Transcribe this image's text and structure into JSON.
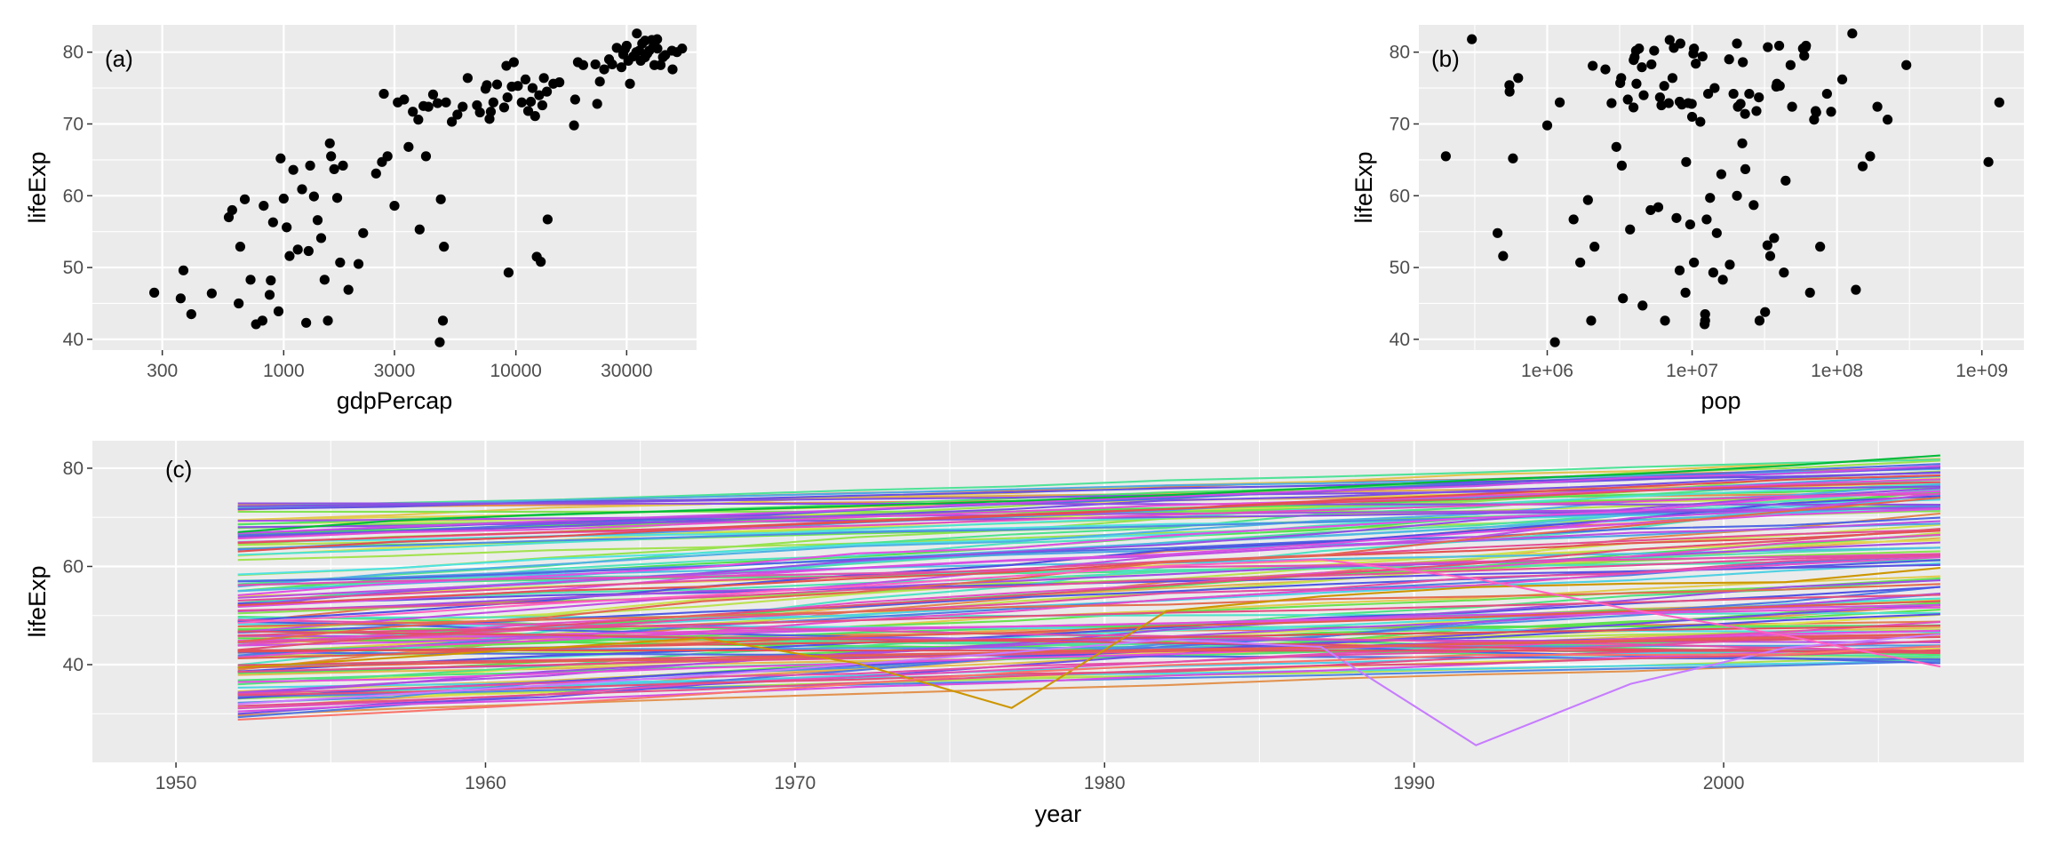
{
  "chart_data": [
    {
      "panel": "a",
      "type": "scatter",
      "tag": "(a)",
      "xlabel": "gdpPercap",
      "ylabel": "lifeExp",
      "xscale": "log10",
      "xlim": [
        150,
        60000
      ],
      "ylim": [
        38.5,
        83.8
      ],
      "xticks": [
        300,
        1000,
        3000,
        10000,
        30000
      ],
      "xtick_labels": [
        "300",
        "1000",
        "3000",
        "10000",
        "30000"
      ],
      "xminor": [
        100,
        10000,
        100000
      ],
      "yticks": [
        40,
        50,
        60,
        70,
        80
      ],
      "ytick_labels": [
        "40",
        "50",
        "60",
        "70",
        "80"
      ],
      "grid": true,
      "point_color": "#000000",
      "points": [
        [
          277,
          46.5
        ],
        [
          360,
          45.7
        ],
        [
          370,
          49.6
        ],
        [
          400,
          43.5
        ],
        [
          490,
          46.4
        ],
        [
          580,
          57.0
        ],
        [
          600,
          58.0
        ],
        [
          640,
          45.0
        ],
        [
          650,
          52.9
        ],
        [
          680,
          59.5
        ],
        [
          720,
          48.3
        ],
        [
          760,
          42.1
        ],
        [
          810,
          42.6
        ],
        [
          820,
          58.6
        ],
        [
          870,
          46.2
        ],
        [
          880,
          48.2
        ],
        [
          900,
          56.3
        ],
        [
          950,
          43.9
        ],
        [
          970,
          65.2
        ],
        [
          1000,
          59.6
        ],
        [
          1030,
          55.6
        ],
        [
          1060,
          51.6
        ],
        [
          1100,
          63.6
        ],
        [
          1150,
          52.5
        ],
        [
          1200,
          60.9
        ],
        [
          1250,
          42.3
        ],
        [
          1280,
          52.3
        ],
        [
          1300,
          64.2
        ],
        [
          1350,
          59.9
        ],
        [
          1400,
          56.6
        ],
        [
          1450,
          54.1
        ],
        [
          1500,
          48.3
        ],
        [
          1550,
          42.6
        ],
        [
          1580,
          67.3
        ],
        [
          1600,
          65.5
        ],
        [
          1650,
          63.7
        ],
        [
          1700,
          59.7
        ],
        [
          1800,
          64.2
        ],
        [
          1750,
          50.7
        ],
        [
          1900,
          46.9
        ],
        [
          2100,
          50.5
        ],
        [
          2200,
          54.8
        ],
        [
          2500,
          63.1
        ],
        [
          2650,
          64.7
        ],
        [
          2700,
          74.2
        ],
        [
          2800,
          65.5
        ],
        [
          3000,
          58.6
        ],
        [
          3100,
          73.0
        ],
        [
          3300,
          73.4
        ],
        [
          3450,
          66.8
        ],
        [
          3600,
          71.7
        ],
        [
          3800,
          70.6
        ],
        [
          3850,
          55.3
        ],
        [
          4000,
          72.5
        ],
        [
          4100,
          65.5
        ],
        [
          4200,
          72.4
        ],
        [
          4400,
          74.1
        ],
        [
          4600,
          72.9
        ],
        [
          4700,
          39.6
        ],
        [
          4750,
          59.5
        ],
        [
          4850,
          42.6
        ],
        [
          4900,
          52.9
        ],
        [
          5000,
          73.0
        ],
        [
          5300,
          70.3
        ],
        [
          5600,
          71.3
        ],
        [
          5900,
          72.4
        ],
        [
          6200,
          76.4
        ],
        [
          6800,
          72.6
        ],
        [
          7000,
          71.6
        ],
        [
          7400,
          74.9
        ],
        [
          7500,
          75.4
        ],
        [
          7700,
          70.7
        ],
        [
          7800,
          71.7
        ],
        [
          8000,
          73.0
        ],
        [
          8300,
          75.5
        ],
        [
          8900,
          72.3
        ],
        [
          9100,
          78.1
        ],
        [
          9200,
          73.7
        ],
        [
          9300,
          49.3
        ],
        [
          9600,
          75.2
        ],
        [
          9800,
          78.6
        ],
        [
          10200,
          75.3
        ],
        [
          10600,
          73.0
        ],
        [
          11000,
          76.2
        ],
        [
          11300,
          71.8
        ],
        [
          11600,
          73.1
        ],
        [
          11800,
          75.0
        ],
        [
          12100,
          71.1
        ],
        [
          12300,
          51.5
        ],
        [
          12600,
          74.0
        ],
        [
          12800,
          50.8
        ],
        [
          13000,
          72.6
        ],
        [
          13200,
          76.4
        ],
        [
          13600,
          74.5
        ],
        [
          13700,
          56.7
        ],
        [
          14500,
          75.6
        ],
        [
          15400,
          75.8
        ],
        [
          17800,
          69.8
        ],
        [
          18000,
          73.4
        ],
        [
          18500,
          78.6
        ],
        [
          19500,
          78.2
        ],
        [
          22000,
          78.3
        ],
        [
          22400,
          72.8
        ],
        [
          23000,
          75.9
        ],
        [
          24000,
          77.6
        ],
        [
          25200,
          79.0
        ],
        [
          26000,
          78.3
        ],
        [
          27200,
          80.6
        ],
        [
          28500,
          77.9
        ],
        [
          29000,
          79.7
        ],
        [
          30000,
          80.9
        ],
        [
          30500,
          78.8
        ],
        [
          31000,
          75.6
        ],
        [
          32000,
          79.4
        ],
        [
          33000,
          80.0
        ],
        [
          33200,
          82.6
        ],
        [
          34000,
          80.2
        ],
        [
          34500,
          78.8
        ],
        [
          35000,
          81.2
        ],
        [
          36000,
          79.3
        ],
        [
          36800,
          79.8
        ],
        [
          37500,
          80.2
        ],
        [
          38500,
          81.7
        ],
        [
          39500,
          78.2
        ],
        [
          40600,
          81.8
        ],
        [
          40700,
          80.5
        ],
        [
          42000,
          78.2
        ],
        [
          43000,
          79.3
        ],
        [
          44000,
          79.6
        ],
        [
          47000,
          80.2
        ],
        [
          47300,
          77.6
        ],
        [
          49400,
          80.0
        ],
        [
          52000,
          80.5
        ],
        [
          36000,
          81.6
        ],
        [
          29500,
          80.4
        ],
        [
          39000,
          80.7
        ]
      ]
    },
    {
      "panel": "b",
      "type": "scatter",
      "tag": "(b)",
      "xlabel": "pop",
      "ylabel": "lifeExp",
      "xscale": "log10",
      "xlim": [
        130000,
        1950000000
      ],
      "ylim": [
        38.5,
        83.8
      ],
      "xticks": [
        1000000,
        10000000,
        100000000,
        1000000000
      ],
      "xtick_labels": [
        "1e+06",
        "1e+07",
        "1e+08",
        "1e+09"
      ],
      "xminor": [
        316228,
        3162278,
        31622777,
        316227766
      ],
      "yticks": [
        40,
        50,
        60,
        70,
        80
      ],
      "ytick_labels": [
        "40",
        "50",
        "60",
        "70",
        "80"
      ],
      "grid": true,
      "point_color": "#000000",
      "points": [
        [
          199579,
          65.5
        ],
        [
          301931,
          81.8
        ],
        [
          454000,
          54.8
        ],
        [
          496000,
          51.6
        ],
        [
          548000,
          75.4
        ],
        [
          550000,
          74.5
        ],
        [
          580000,
          65.2
        ],
        [
          630000,
          76.4
        ],
        [
          1000000,
          69.8
        ],
        [
          1130000,
          39.6
        ],
        [
          1220000,
          73.0
        ],
        [
          1520000,
          56.7
        ],
        [
          1690000,
          50.7
        ],
        [
          1910000,
          59.4
        ],
        [
          2010000,
          42.6
        ],
        [
          2060000,
          78.1
        ],
        [
          2120000,
          52.9
        ],
        [
          2520000,
          77.6
        ],
        [
          2780000,
          72.9
        ],
        [
          3000000,
          66.8
        ],
        [
          3190000,
          75.7
        ],
        [
          3240000,
          76.4
        ],
        [
          3270000,
          64.2
        ],
        [
          3330000,
          45.7
        ],
        [
          3600000,
          73.4
        ],
        [
          3940000,
          72.3
        ],
        [
          3950000,
          78.9
        ],
        [
          4010000,
          79.3
        ],
        [
          4100000,
          80.2
        ],
        [
          3730000,
          55.3
        ],
        [
          4130000,
          75.6
        ],
        [
          4300000,
          80.5
        ],
        [
          4500000,
          77.9
        ],
        [
          4550000,
          44.7
        ],
        [
          4630000,
          74.0
        ],
        [
          5240000,
          78.3
        ],
        [
          5470000,
          80.2
        ],
        [
          5170000,
          58.0
        ],
        [
          5840000,
          58.4
        ],
        [
          6000000,
          73.7
        ],
        [
          6140000,
          72.6
        ],
        [
          6420000,
          75.3
        ],
        [
          6500000,
          42.6
        ],
        [
          6900000,
          72.9
        ],
        [
          7000000,
          81.7
        ],
        [
          7320000,
          76.4
        ],
        [
          7480000,
          80.6
        ],
        [
          7800000,
          56.9
        ],
        [
          8200000,
          73.1
        ],
        [
          8300000,
          81.2
        ],
        [
          8500000,
          72.7
        ],
        [
          8200000,
          49.6
        ],
        [
          9000000,
          46.5
        ],
        [
          9100000,
          64.7
        ],
        [
          9400000,
          72.9
        ],
        [
          10000000,
          71.0
        ],
        [
          10200000,
          79.8
        ],
        [
          10300000,
          80.5
        ],
        [
          9700000,
          56.0
        ],
        [
          10600000,
          78.4
        ],
        [
          10300000,
          50.7
        ],
        [
          9950000,
          72.8
        ],
        [
          11400000,
          70.3
        ],
        [
          11800000,
          79.4
        ],
        [
          12200000,
          42.1
        ],
        [
          12300000,
          43.5
        ],
        [
          12600000,
          56.7
        ],
        [
          12300000,
          42.6
        ],
        [
          13300000,
          59.7
        ],
        [
          14300000,
          75.0
        ],
        [
          12900000,
          74.2
        ],
        [
          14000000,
          49.3
        ],
        [
          14800000,
          54.8
        ],
        [
          15900000,
          63.0
        ],
        [
          16300000,
          48.3
        ],
        [
          18000000,
          79.0
        ],
        [
          18200000,
          50.4
        ],
        [
          19300000,
          74.2
        ],
        [
          20400000,
          60.0
        ],
        [
          20400000,
          81.2
        ],
        [
          20700000,
          72.4
        ],
        [
          21600000,
          72.8
        ],
        [
          22200000,
          67.3
        ],
        [
          22400000,
          78.6
        ],
        [
          23200000,
          71.4
        ],
        [
          23300000,
          63.7
        ],
        [
          24800000,
          74.2
        ],
        [
          26600000,
          58.7
        ],
        [
          27800000,
          71.8
        ],
        [
          28900000,
          73.7
        ],
        [
          29200000,
          42.6
        ],
        [
          31900000,
          43.8
        ],
        [
          33300000,
          80.7
        ],
        [
          33100000,
          53.1
        ],
        [
          34600000,
          51.6
        ],
        [
          36800000,
          54.1
        ],
        [
          38100000,
          75.2
        ],
        [
          38500000,
          75.6
        ],
        [
          39900000,
          80.9
        ],
        [
          40300000,
          75.3
        ],
        [
          43000000,
          49.3
        ],
        [
          44200000,
          62.1
        ],
        [
          47800000,
          78.2
        ],
        [
          49000000,
          72.4
        ],
        [
          58200000,
          80.5
        ],
        [
          59400000,
          79.5
        ],
        [
          60800000,
          80.7
        ],
        [
          61100000,
          80.9
        ],
        [
          65100000,
          46.5
        ],
        [
          69500000,
          70.6
        ],
        [
          71200000,
          71.8
        ],
        [
          71900000,
          71.6
        ],
        [
          76500000,
          52.9
        ],
        [
          85300000,
          74.2
        ],
        [
          91100000,
          71.7
        ],
        [
          108700000,
          76.2
        ],
        [
          127500000,
          82.6
        ],
        [
          135000000,
          46.9
        ],
        [
          150400000,
          64.1
        ],
        [
          169300000,
          65.5
        ],
        [
          190000000,
          72.4
        ],
        [
          223500000,
          70.6
        ],
        [
          301100000,
          78.2
        ],
        [
          1110000000,
          64.7
        ],
        [
          1319000000,
          73.0
        ]
      ]
    },
    {
      "panel": "c",
      "type": "line",
      "tag": "(c)",
      "xlabel": "year",
      "ylabel": "lifeExp",
      "xlim": [
        1947.3,
        2009.7
      ],
      "ylim": [
        20.1,
        85.6
      ],
      "xticks": [
        1950,
        1960,
        1970,
        1980,
        1990,
        2000
      ],
      "xtick_labels": [
        "1950",
        "1960",
        "1970",
        "1980",
        "1990",
        "2000"
      ],
      "yticks": [
        40,
        60,
        80
      ],
      "ytick_labels": [
        "40",
        "60",
        "80"
      ],
      "grid": true,
      "x": [
        1952,
        1957,
        1962,
        1967,
        1972,
        1977,
        1982,
        1987,
        1992,
        1997,
        2002,
        2007
      ],
      "series_count": 142,
      "special_series": [
        {
          "color": "#C77CFF",
          "values": [
            32.0,
            33.9,
            35.8,
            37.8,
            40.1,
            42.5,
            45.1,
            43.6,
            23.6,
            36.1,
            43.4,
            46.2
          ]
        },
        {
          "color": "#CD9600",
          "values": [
            39.4,
            41.4,
            43.4,
            45.4,
            40.3,
            31.2,
            50.9,
            53.9,
            55.8,
            56.5,
            56.8,
            59.7
          ]
        },
        {
          "color": "#F8766D",
          "values": [
            28.8,
            30.3,
            32.0,
            34.0,
            36.1,
            38.4,
            39.9,
            40.8,
            42.0,
            42.0,
            42.1,
            43.8
          ]
        },
        {
          "color": "#FF61C3",
          "values": [
            48.5,
            50.3,
            52.4,
            54.1,
            56.0,
            58.0,
            60.1,
            61.4,
            57.5,
            51.2,
            45.9,
            39.6
          ]
        },
        {
          "color": "#00BA38",
          "values": [
            67.0,
            69.3,
            70.6,
            71.4,
            72.3,
            73.3,
            74.5,
            76.0,
            77.6,
            78.8,
            80.5,
            82.6
          ]
        }
      ]
    }
  ]
}
